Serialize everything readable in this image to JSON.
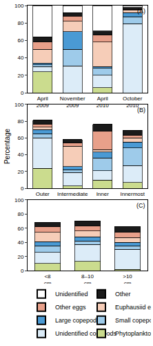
{
  "chart_data": [
    {
      "type": "bar",
      "title": "(A)",
      "stacked": true,
      "categories": [
        "April 2009",
        "November 2009",
        "April 2010",
        "October 2010"
      ],
      "ylim": [
        0,
        100
      ],
      "yticks": [
        0,
        20,
        40,
        60,
        80,
        100
      ],
      "series": [
        {
          "name": "Phytoplankton",
          "color": "#cbdc8e",
          "values": [
            24,
            0,
            6,
            0
          ]
        },
        {
          "name": "Unidentified copepods",
          "color": "#dcecf8",
          "values": [
            6,
            31,
            14,
            79
          ]
        },
        {
          "name": "Small copepods",
          "color": "#9ecbea",
          "values": [
            2,
            19,
            8,
            8
          ]
        },
        {
          "name": "Large copepods",
          "color": "#4a9ad4",
          "values": [
            2,
            20,
            2,
            5
          ]
        },
        {
          "name": "Euphausiid eggs",
          "color": "#f6cdb8",
          "values": [
            16,
            12,
            28,
            3
          ]
        },
        {
          "name": "Other eggs",
          "color": "#e8a08a",
          "values": [
            8,
            6,
            8,
            1
          ]
        },
        {
          "name": "Other",
          "color": "#1a1a1a",
          "values": [
            6,
            4,
            5,
            2
          ]
        },
        {
          "name": "Unidentified",
          "color": "#ffffff",
          "values": [
            36,
            8,
            29,
            2
          ]
        }
      ]
    },
    {
      "type": "bar",
      "title": "(B)",
      "stacked": true,
      "y_label": "Percentage",
      "categories": [
        "Outer",
        "Intermediate",
        "Inner",
        "Innermost"
      ],
      "ylim": [
        0,
        100
      ],
      "yticks": [
        0,
        20,
        40,
        60,
        80,
        100
      ],
      "series": [
        {
          "name": "Phytoplankton",
          "color": "#cbdc8e",
          "values": [
            24,
            3,
            10,
            7
          ]
        },
        {
          "name": "Unidentified copepods",
          "color": "#dcecf8",
          "values": [
            36,
            16,
            11,
            20
          ]
        },
        {
          "name": "Small copepods",
          "color": "#9ecbea",
          "values": [
            5,
            3,
            15,
            21
          ]
        },
        {
          "name": "Large copepods",
          "color": "#4a9ad4",
          "values": [
            5,
            4,
            7,
            7
          ]
        },
        {
          "name": "Euphausiid eggs",
          "color": "#f6cdb8",
          "values": [
            3,
            24,
            3,
            5
          ]
        },
        {
          "name": "Other eggs",
          "color": "#e8a08a",
          "values": [
            3,
            4,
            22,
            3
          ]
        },
        {
          "name": "Other",
          "color": "#1a1a1a",
          "values": [
            5,
            4,
            8,
            6
          ]
        },
        {
          "name": "Unidentified",
          "color": "#ffffff",
          "values": [
            0,
            0,
            0,
            0
          ]
        }
      ]
    },
    {
      "type": "bar",
      "title": "(C)",
      "stacked": true,
      "categories": [
        "<8 cm",
        "8–10 cm",
        ">10 cm"
      ],
      "ylim": [
        0,
        100
      ],
      "yticks": [
        0,
        20,
        40,
        60,
        80,
        100
      ],
      "series": [
        {
          "name": "Phytoplankton",
          "color": "#cbdc8e",
          "values": [
            10,
            13,
            2
          ]
        },
        {
          "name": "Unidentified copepods",
          "color": "#dcecf8",
          "values": [
            16,
            24,
            28
          ]
        },
        {
          "name": "Small copepods",
          "color": "#9ecbea",
          "values": [
            9,
            5,
            5
          ]
        },
        {
          "name": "Large copepods",
          "color": "#4a9ad4",
          "values": [
            6,
            6,
            5
          ]
        },
        {
          "name": "Euphausiid eggs",
          "color": "#f6cdb8",
          "values": [
            13,
            8,
            7
          ]
        },
        {
          "name": "Other eggs",
          "color": "#e8a08a",
          "values": [
            8,
            7,
            7
          ]
        },
        {
          "name": "Other",
          "color": "#1a1a1a",
          "values": [
            6,
            7,
            8
          ]
        },
        {
          "name": "Unidentified",
          "color": "#ffffff",
          "values": [
            0,
            0,
            0
          ]
        }
      ]
    }
  ]
}
